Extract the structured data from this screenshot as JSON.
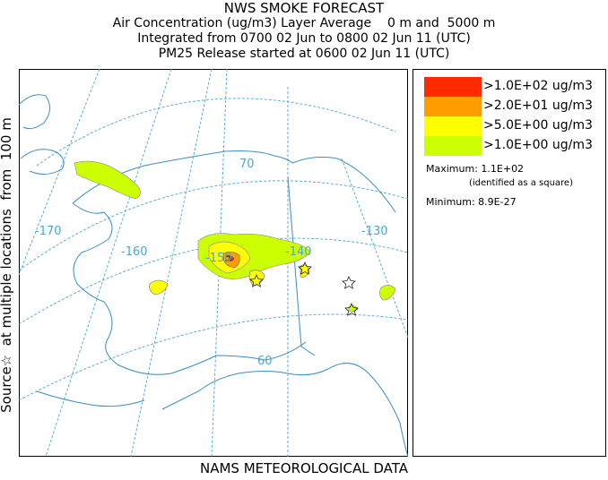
{
  "header": {
    "title": "NWS SMOKE FORECAST",
    "line2": "Air Concentration (ug/m3) Layer Average    0 m and  5000 m",
    "line3": "Integrated from 0700 02 Jun to 0800 02 Jun 11 (UTC)",
    "line4": "PM25 Release started at 0600 02 Jun 11 (UTC)"
  },
  "footer": {
    "label": "NAMS METEOROLOGICAL DATA"
  },
  "side_label": "Source☆  at multiple locations  from  100 m",
  "map": {
    "graticule_labels": {
      "lon_170": "-170",
      "lon_160": "-160",
      "lon_150": "-150",
      "lon_140": "-140",
      "lon_130": "-130",
      "lat_70": "70",
      "lat_60": "60"
    },
    "colors": {
      "level_100": "#ff2a00",
      "level_20": "#ff9c00",
      "level_5": "#ffff00",
      "level_1": "#ccff00",
      "graticule": "#4aa6d6",
      "coast": "#3a8fc4"
    },
    "source_icon": "star-outline-icon",
    "max_marker_icon": "square-outline-icon"
  },
  "legend": {
    "items": [
      {
        "label": ">1.0E+02 ug/m3",
        "color": "#ff2a00"
      },
      {
        "label": ">2.0E+01 ug/m3",
        "color": "#ff9c00"
      },
      {
        "label": ">5.0E+00 ug/m3",
        "color": "#ffff00"
      },
      {
        "label": ">1.0E+00 ug/m3",
        "color": "#ccff00"
      }
    ],
    "maximum": "Maximum: 1.1E+02",
    "maximum_note": "(identified as a square)",
    "minimum": "Minimum: 8.9E-27"
  }
}
